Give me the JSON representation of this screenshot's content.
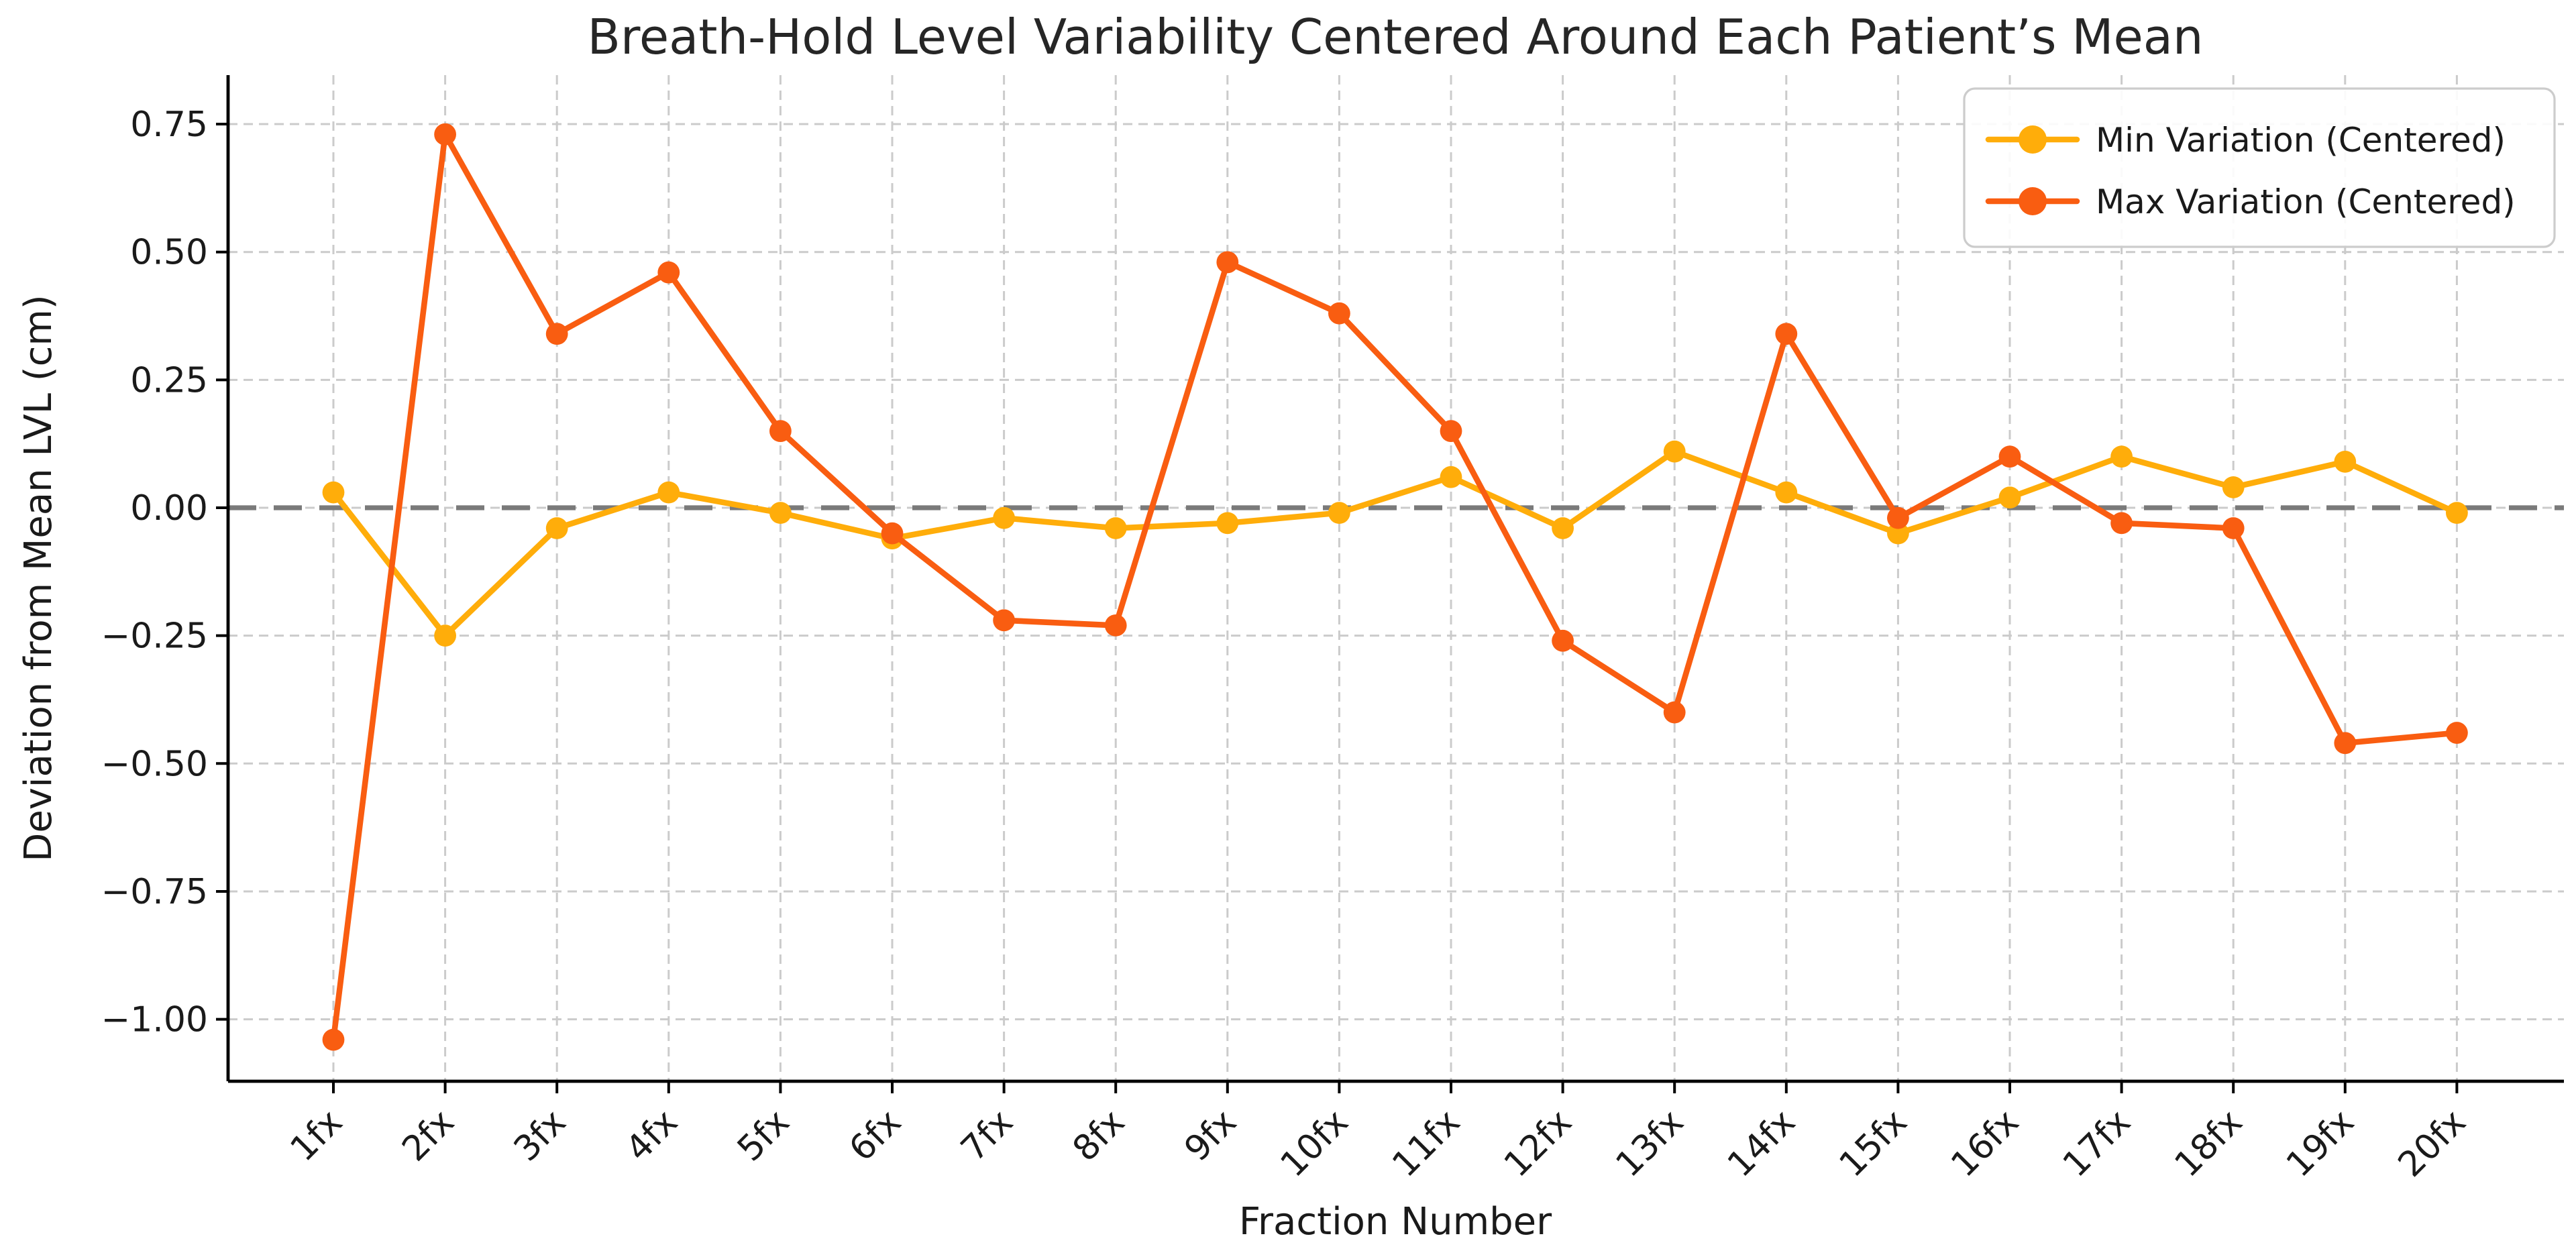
{
  "chart_data": {
    "type": "line",
    "title": "Breath-Hold Level Variability Centered Around Each Patient’s Mean",
    "xlabel": "Fraction Number",
    "ylabel": "Deviation from Mean LVL (cm)",
    "categories": [
      "1fx",
      "2fx",
      "3fx",
      "4fx",
      "5fx",
      "6fx",
      "7fx",
      "8fx",
      "9fx",
      "10fx",
      "11fx",
      "12fx",
      "13fx",
      "14fx",
      "15fx",
      "16fx",
      "17fx",
      "18fx",
      "19fx",
      "20fx"
    ],
    "series": [
      {
        "name": "Min Variation (Centered)",
        "color": "#FFAD0A",
        "values": [
          0.03,
          -0.25,
          -0.04,
          0.03,
          -0.01,
          -0.06,
          -0.02,
          -0.04,
          -0.03,
          -0.01,
          0.06,
          -0.04,
          0.11,
          0.03,
          -0.05,
          0.02,
          0.1,
          0.04,
          0.09,
          -0.01
        ]
      },
      {
        "name": "Max Variation (Centered)",
        "color": "#F95D11",
        "values": [
          -1.04,
          0.73,
          0.34,
          0.46,
          0.15,
          -0.05,
          -0.22,
          -0.23,
          0.48,
          0.38,
          0.15,
          -0.26,
          -0.4,
          0.34,
          -0.02,
          0.1,
          -0.03,
          -0.04,
          -0.46,
          -0.44
        ]
      }
    ],
    "yticks": [
      0.75,
      0.5,
      0.25,
      0.0,
      -0.25,
      -0.5,
      -0.75,
      -1.0
    ],
    "ytick_labels": [
      "0.75",
      "0.50",
      "0.25",
      "0.00",
      "−0.25",
      "−0.50",
      "−0.75",
      "−1.00"
    ],
    "ylim": [
      -1.12,
      0.85
    ],
    "grid": true,
    "zero_line": {
      "value": 0,
      "color": "#7a7a7a",
      "style": "dashed"
    },
    "legend_position": "upper right",
    "marker": "circle"
  }
}
